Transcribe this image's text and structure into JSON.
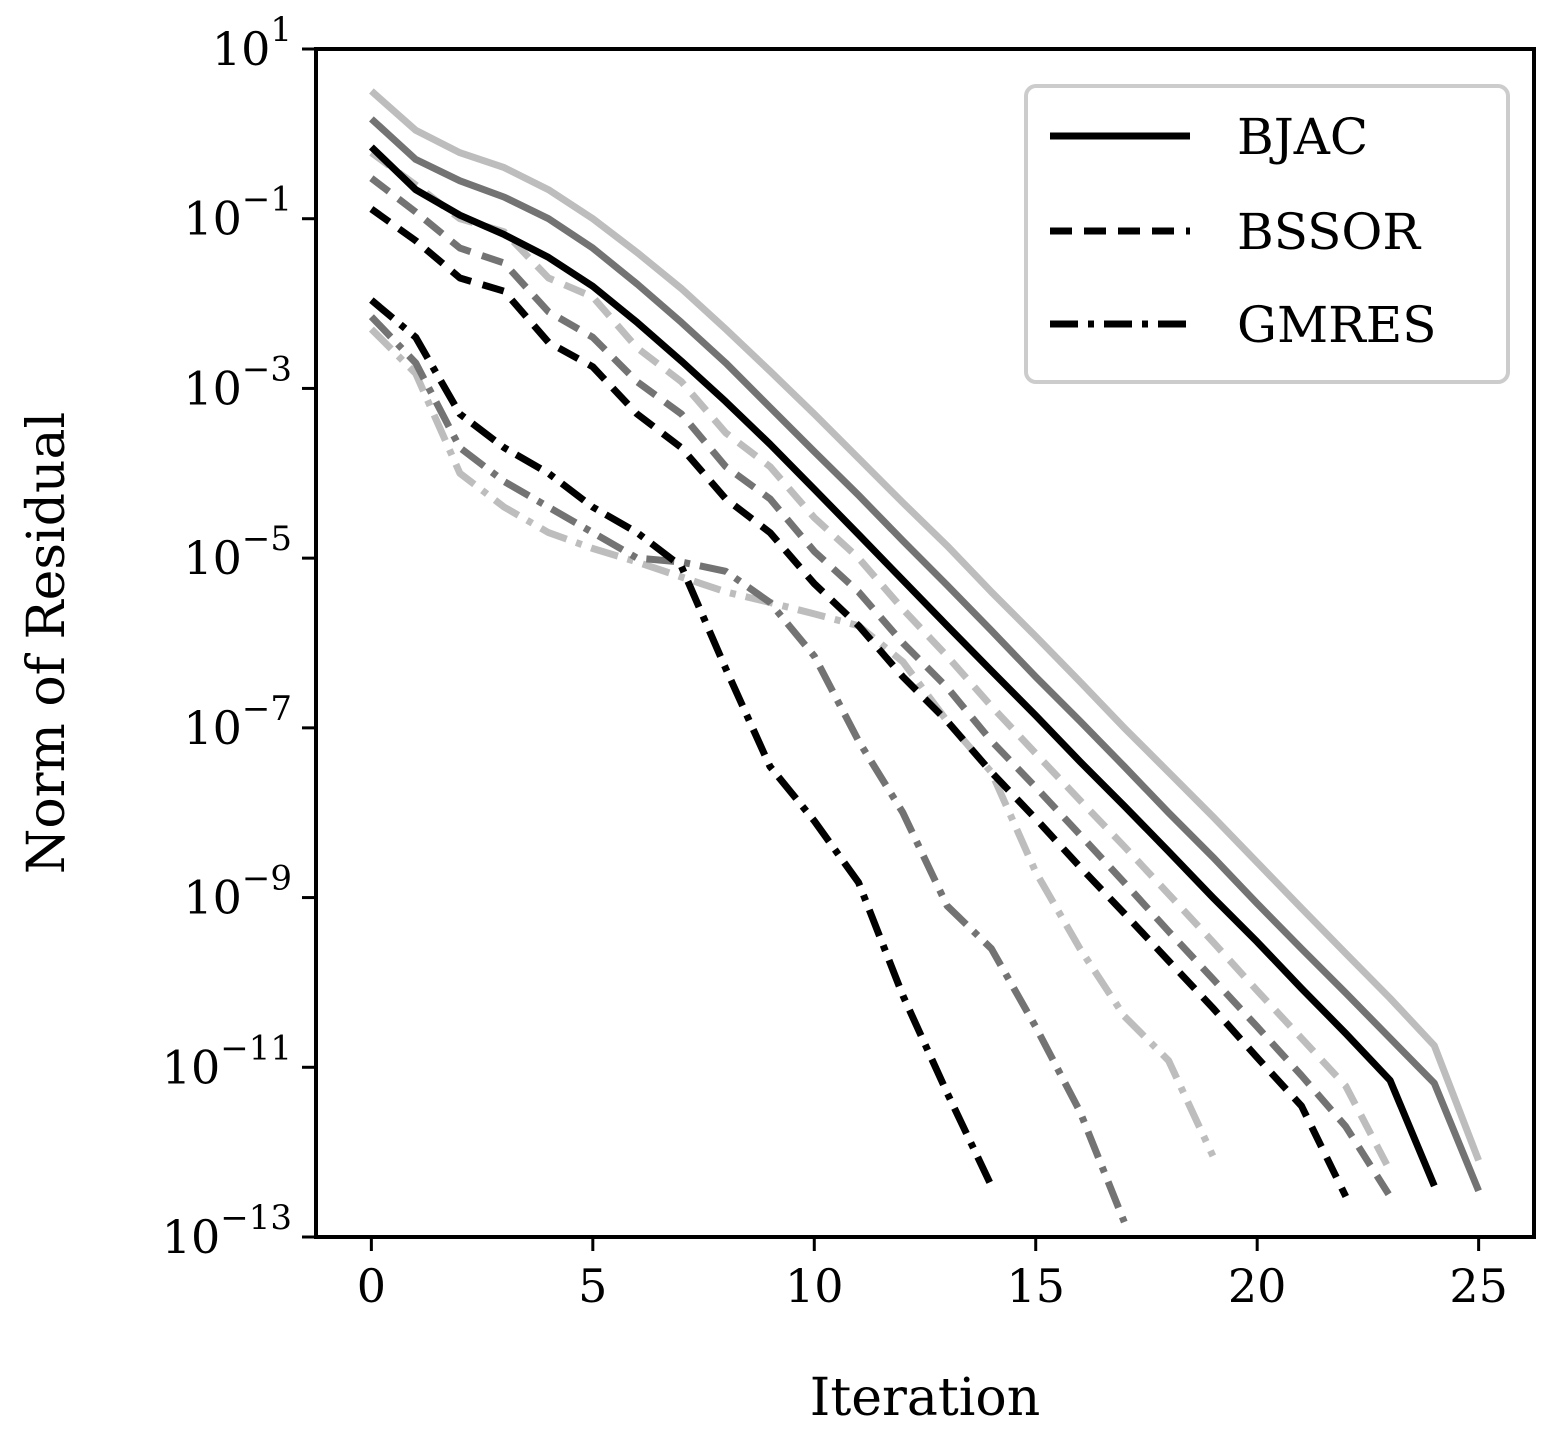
{
  "chart_data": {
    "type": "line",
    "title": "",
    "xlabel": "Iteration",
    "ylabel": "Norm of Residual",
    "yscale": "log",
    "xlim": [
      -1.25,
      26.25
    ],
    "ylim": [
      1e-13,
      10
    ],
    "xticks": [
      0,
      5,
      10,
      15,
      20,
      25
    ],
    "xtick_labels": [
      "0",
      "5",
      "10",
      "15",
      "20",
      "25"
    ],
    "yticks": [
      1e-13,
      1e-11,
      1e-09,
      1e-07,
      1e-05,
      0.001,
      0.1,
      10
    ],
    "ytick_labels": [
      {
        "base": "10",
        "exp": "−13"
      },
      {
        "base": "10",
        "exp": "−11"
      },
      {
        "base": "10",
        "exp": "−9"
      },
      {
        "base": "10",
        "exp": "−7"
      },
      {
        "base": "10",
        "exp": "−5"
      },
      {
        "base": "10",
        "exp": "−3"
      },
      {
        "base": "10",
        "exp": "−1"
      },
      {
        "base": "10",
        "exp": "1"
      }
    ],
    "grid": false,
    "legend_position": "top-right",
    "legend": [
      {
        "label": "BJAC",
        "style": "solid",
        "color": "#000000"
      },
      {
        "label": "BSSOR",
        "style": "dashed",
        "color": "#000000"
      },
      {
        "label": "GMRES",
        "style": "dashdot",
        "color": "#000000"
      }
    ],
    "colors": {
      "black": "#000000",
      "gray": "#737373",
      "light": "#bdbdbd"
    },
    "series": [
      {
        "method": "BJAC",
        "style": "solid",
        "color": "#bdbdbd",
        "x": [
          0,
          1,
          2,
          3,
          4,
          5,
          6,
          7,
          8,
          9,
          10,
          11,
          12,
          13,
          14,
          15,
          16,
          17,
          18,
          19,
          20,
          21,
          22,
          23,
          24,
          25
        ],
        "y": [
          3.2,
          1.1,
          0.6,
          0.4,
          0.22,
          0.1,
          0.04,
          0.015,
          0.005,
          0.0016,
          0.0005,
          0.00015,
          4.5e-05,
          1.4e-05,
          4e-06,
          1.2e-06,
          3.5e-07,
          1e-07,
          3e-08,
          9e-09,
          2.6e-09,
          7.5e-10,
          2.2e-10,
          6.5e-11,
          1.8e-11,
          8e-13
        ]
      },
      {
        "method": "BJAC",
        "style": "solid",
        "color": "#737373",
        "x": [
          0,
          1,
          2,
          3,
          4,
          5,
          6,
          7,
          8,
          9,
          10,
          11,
          12,
          13,
          14,
          15,
          16,
          17,
          18,
          19,
          20,
          21,
          22,
          23,
          24,
          25
        ],
        "y": [
          1.5,
          0.5,
          0.28,
          0.18,
          0.1,
          0.045,
          0.017,
          0.006,
          0.002,
          0.0006,
          0.00018,
          5.5e-05,
          1.6e-05,
          4.8e-06,
          1.4e-06,
          4e-07,
          1.2e-07,
          3.5e-08,
          1e-08,
          3e-09,
          8.5e-10,
          2.5e-10,
          7.5e-11,
          2.2e-11,
          6.5e-12,
          3.5e-13
        ]
      },
      {
        "method": "BJAC",
        "style": "solid",
        "color": "#000000",
        "x": [
          0,
          1,
          2,
          3,
          4,
          5,
          6,
          7,
          8,
          9,
          10,
          11,
          12,
          13,
          14,
          15,
          16,
          17,
          18,
          19,
          20,
          21,
          22,
          23,
          24
        ],
        "y": [
          0.7,
          0.22,
          0.11,
          0.065,
          0.035,
          0.016,
          0.006,
          0.0021,
          0.0007,
          0.00022,
          6.5e-05,
          1.9e-05,
          5.5e-06,
          1.6e-06,
          4.7e-07,
          1.4e-07,
          4e-08,
          1.2e-08,
          3.5e-09,
          1e-09,
          3e-10,
          8.5e-11,
          2.5e-11,
          7e-12,
          4e-13
        ]
      },
      {
        "method": "BSSOR",
        "style": "dashed",
        "color": "#bdbdbd",
        "x": [
          0,
          1,
          2,
          3,
          4,
          5,
          6,
          7,
          8,
          9,
          10,
          11,
          12,
          13,
          14,
          15,
          16,
          17,
          18,
          19,
          20,
          21,
          22,
          23
        ],
        "y": [
          0.6,
          0.25,
          0.1,
          0.07,
          0.02,
          0.012,
          0.003,
          0.0012,
          0.0003,
          0.00012,
          3e-05,
          1e-05,
          2.5e-06,
          7e-07,
          1.8e-07,
          5e-08,
          1.4e-08,
          4e-09,
          1.1e-09,
          3e-10,
          8e-11,
          2.2e-11,
          6e-12,
          6e-13
        ]
      },
      {
        "method": "BSSOR",
        "style": "dashed",
        "color": "#737373",
        "x": [
          0,
          1,
          2,
          3,
          4,
          5,
          6,
          7,
          8,
          9,
          10,
          11,
          12,
          13,
          14,
          15,
          16,
          17,
          18,
          19,
          20,
          21,
          22,
          23
        ],
        "y": [
          0.3,
          0.12,
          0.045,
          0.03,
          0.008,
          0.004,
          0.0012,
          0.0005,
          0.00012,
          5e-05,
          1.2e-05,
          4e-06,
          1e-06,
          3e-07,
          7e-08,
          2e-08,
          5.5e-09,
          1.5e-09,
          4e-10,
          1.1e-10,
          3e-11,
          8e-12,
          2e-12,
          3e-13
        ]
      },
      {
        "method": "BSSOR",
        "style": "dashed",
        "color": "#000000",
        "x": [
          0,
          1,
          2,
          3,
          4,
          5,
          6,
          7,
          8,
          9,
          10,
          11,
          12,
          13,
          14,
          15,
          16,
          17,
          18,
          19,
          20,
          21,
          22
        ],
        "y": [
          0.13,
          0.055,
          0.02,
          0.014,
          0.0035,
          0.0018,
          0.0005,
          0.0002,
          5e-05,
          2e-05,
          5e-06,
          1.6e-06,
          4e-07,
          1.2e-07,
          3e-08,
          8.5e-09,
          2.3e-09,
          6.5e-10,
          1.8e-10,
          5e-11,
          1.3e-11,
          3.5e-12,
          3e-13
        ]
      },
      {
        "method": "GMRES",
        "style": "dashdot",
        "color": "#bdbdbd",
        "x": [
          0,
          1,
          2,
          3,
          4,
          5,
          6,
          7,
          8,
          9,
          10,
          11,
          12,
          13,
          14,
          15,
          16,
          17,
          18,
          19
        ],
        "y": [
          0.005,
          0.0015,
          0.0001,
          4e-05,
          2e-05,
          1.3e-05,
          9e-06,
          6e-06,
          4e-06,
          3e-06,
          2.2e-06,
          1.6e-06,
          6e-07,
          1.2e-07,
          3e-08,
          2e-09,
          2.5e-10,
          4e-11,
          1.2e-11,
          9e-13
        ]
      },
      {
        "method": "GMRES",
        "style": "dashdot",
        "color": "#737373",
        "x": [
          0,
          1,
          2,
          3,
          4,
          5,
          6,
          7,
          8,
          9,
          10,
          11,
          12,
          13,
          14,
          15,
          16,
          17
        ],
        "y": [
          0.007,
          0.002,
          0.0002,
          8e-05,
          4e-05,
          2e-05,
          1e-05,
          9e-06,
          7e-06,
          3e-06,
          7e-07,
          7e-08,
          1e-08,
          8e-10,
          2.5e-10,
          3e-11,
          3e-12,
          1.5e-13
        ]
      },
      {
        "method": "GMRES",
        "style": "dashdot",
        "color": "#000000",
        "x": [
          0,
          1,
          2,
          3,
          4,
          5,
          6,
          7,
          8,
          9,
          10,
          11,
          12,
          13,
          14
        ],
        "y": [
          0.011,
          0.004,
          0.0005,
          0.0002,
          0.0001,
          4e-05,
          2e-05,
          8e-06,
          5e-07,
          3.5e-08,
          8e-09,
          1.5e-09,
          7e-11,
          5e-12,
          4e-13
        ]
      }
    ]
  }
}
